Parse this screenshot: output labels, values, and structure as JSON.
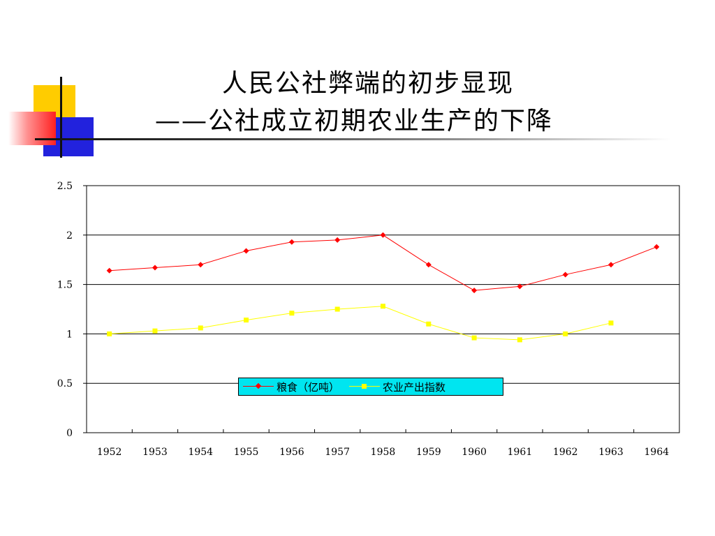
{
  "slide": {
    "title_line1": "人民公社弊端的初步显现",
    "title_line2": "——公社成立初期农业生产的下降",
    "colors": {
      "deco_yellow": "#ffcc00",
      "deco_blue": "#2222dd",
      "deco_red": "#ff2020"
    }
  },
  "chart_data": {
    "type": "line",
    "title": "",
    "xlabel": "",
    "ylabel": "",
    "categories": [
      "1952",
      "1953",
      "1954",
      "1955",
      "1956",
      "1957",
      "1958",
      "1959",
      "1960",
      "1961",
      "1962",
      "1963",
      "1964"
    ],
    "ylim": [
      0,
      2.5
    ],
    "yticks": [
      0,
      0.5,
      1,
      1.5,
      2,
      2.5
    ],
    "ytick_labels": [
      "0",
      "0.5",
      "1",
      "1.5",
      "2",
      "2.5"
    ],
    "grid": true,
    "legend_position": "bottom-center",
    "series": [
      {
        "name": "粮食（亿吨）",
        "color": "#ff0000",
        "marker": "diamond",
        "values": [
          1.64,
          1.67,
          1.7,
          1.84,
          1.93,
          1.95,
          2.0,
          1.7,
          1.44,
          1.48,
          1.6,
          1.7,
          1.88
        ]
      },
      {
        "name": "农业产出指数",
        "color": "#ffff00",
        "marker": "square",
        "values": [
          1.0,
          1.03,
          1.06,
          1.14,
          1.21,
          1.25,
          1.28,
          1.1,
          0.96,
          0.94,
          1.0,
          1.11,
          null
        ]
      }
    ]
  }
}
